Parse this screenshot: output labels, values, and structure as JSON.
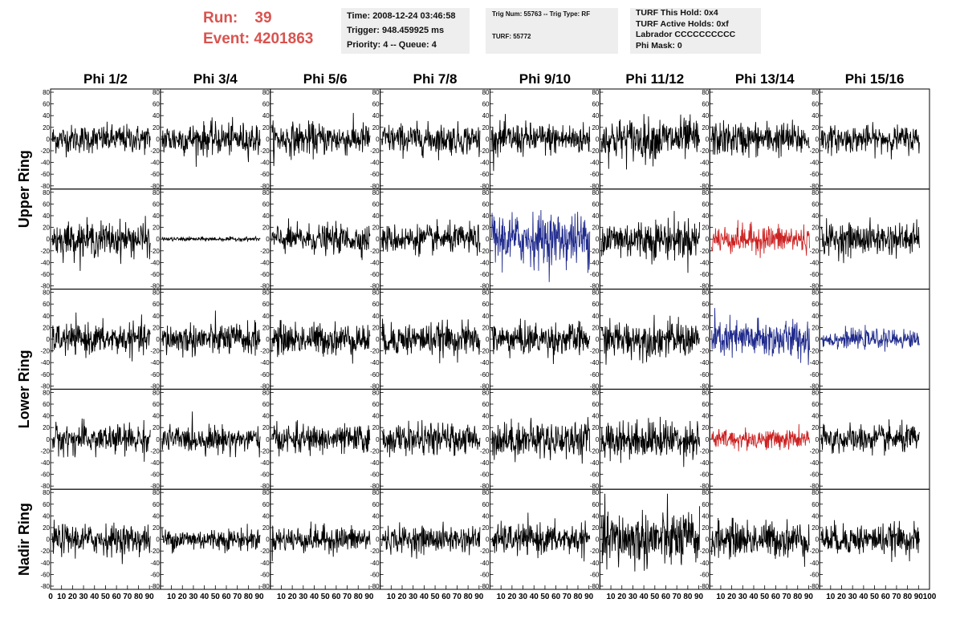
{
  "header": {
    "run_label": "Run:",
    "run_value": "39",
    "event_label": "Event:",
    "event_value": "4201863",
    "time": "Time: 2008-12-24 03:46:58",
    "trigger": "Trigger: 948.459925 ms",
    "priority": "Priority: 4 -- Queue: 4",
    "trig_num": "Trig Num: 55763 -- Trig Type: RF",
    "turf": "TURF: 55772",
    "turf_this_hold": "TURF This Hold: 0x4",
    "turf_active_holds": "TURF Active Holds: 0xf",
    "labrador": "Labrador CCCCCCCCCC",
    "phi_mask": "Phi Mask: 0"
  },
  "colors": {
    "header_red": "#d9534f",
    "trace_default": "#000000",
    "trace_blue": "#1f2a8c",
    "trace_red": "#cc2222"
  },
  "chart_data": {
    "type": "line",
    "columns": [
      "Phi 1/2",
      "Phi 3/4",
      "Phi 5/6",
      "Phi 7/8",
      "Phi 9/10",
      "Phi 11/12",
      "Phi 13/14",
      "Phi 15/16"
    ],
    "rows": [
      "Upper Ring",
      "Upper Ring",
      "Lower Ring",
      "Lower Ring",
      "Nadir Ring"
    ],
    "row_labels": [
      {
        "text": "Upper Ring",
        "rows": [
          0,
          1
        ]
      },
      {
        "text": "Lower Ring",
        "rows": [
          2,
          3
        ]
      },
      {
        "text": "Nadir Ring",
        "rows": [
          4
        ]
      }
    ],
    "ylim": [
      -80,
      80
    ],
    "yticks": [
      -80,
      -60,
      -40,
      -20,
      0,
      20,
      40,
      60,
      80
    ],
    "xlim": [
      0,
      100
    ],
    "xticks": [
      0,
      10,
      20,
      30,
      40,
      50,
      60,
      70,
      80,
      90
    ],
    "xtick_final": "100",
    "samples_per_trace": 260,
    "trace_amplitude": [
      [
        14,
        16,
        16,
        15,
        16,
        21,
        17,
        13
      ],
      [
        17,
        2,
        14,
        14,
        26,
        20,
        14,
        16
      ],
      [
        15,
        16,
        16,
        16,
        16,
        18,
        19,
        9
      ],
      [
        15,
        13,
        14,
        15,
        18,
        19,
        10,
        14
      ],
      [
        15,
        11,
        13,
        13,
        15,
        28,
        18,
        15
      ]
    ],
    "trace_color": [
      [
        "default",
        "default",
        "default",
        "default",
        "default",
        "default",
        "default",
        "default"
      ],
      [
        "default",
        "default",
        "default",
        "default",
        "blue",
        "default",
        "red",
        "default"
      ],
      [
        "default",
        "default",
        "default",
        "default",
        "default",
        "default",
        "blue",
        "blue"
      ],
      [
        "default",
        "default",
        "default",
        "default",
        "default",
        "default",
        "red",
        "default"
      ],
      [
        "default",
        "default",
        "default",
        "default",
        "default",
        "default",
        "default",
        "default"
      ]
    ]
  }
}
